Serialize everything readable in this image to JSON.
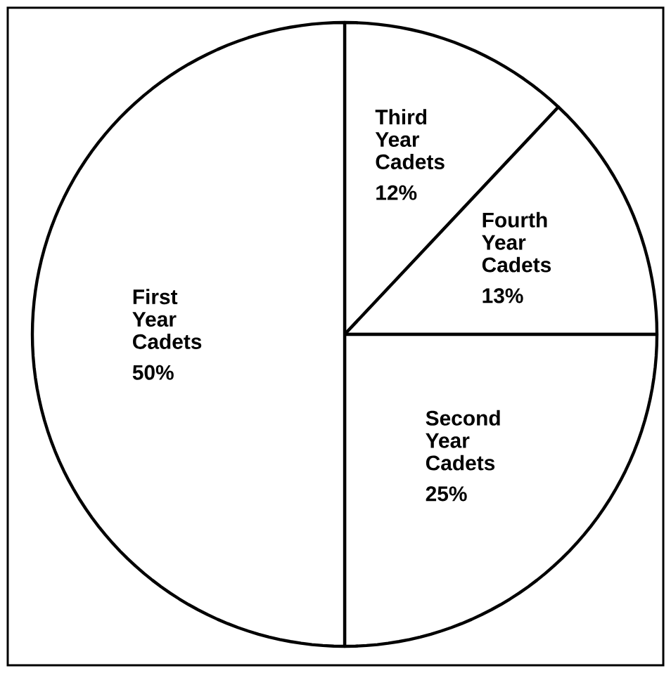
{
  "chart_data": {
    "type": "pie",
    "categories": [
      "Third Year Cadets",
      "Fourth Year Cadets",
      "Second Year Cadets",
      "First Year Cadets"
    ],
    "values": [
      12,
      13,
      25,
      50
    ],
    "value_labels": [
      "12%",
      "13%",
      "25%",
      "50%"
    ],
    "colors": [
      "#ffffff",
      "#ffffff",
      "#ffffff",
      "#ffffff"
    ]
  }
}
